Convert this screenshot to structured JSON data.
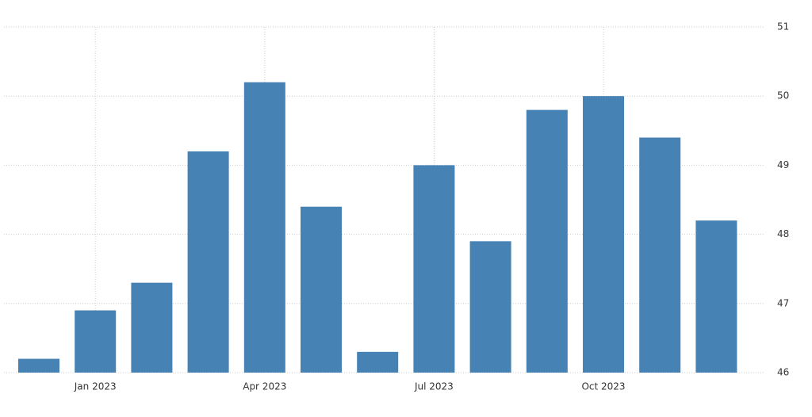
{
  "chart_data": {
    "type": "bar",
    "categories": [
      null,
      "Jan 2023",
      null,
      null,
      "Apr 2023",
      null,
      null,
      "Jul 2023",
      null,
      null,
      "Oct 2023",
      null,
      null
    ],
    "values": [
      46.2,
      46.9,
      47.3,
      49.2,
      50.2,
      48.4,
      46.3,
      49.0,
      47.9,
      49.8,
      50.0,
      49.4,
      48.2
    ],
    "color": "#4682b4",
    "ylim": [
      46,
      51
    ],
    "yticks": [
      46,
      47,
      48,
      49,
      50,
      51
    ],
    "grid": true
  }
}
